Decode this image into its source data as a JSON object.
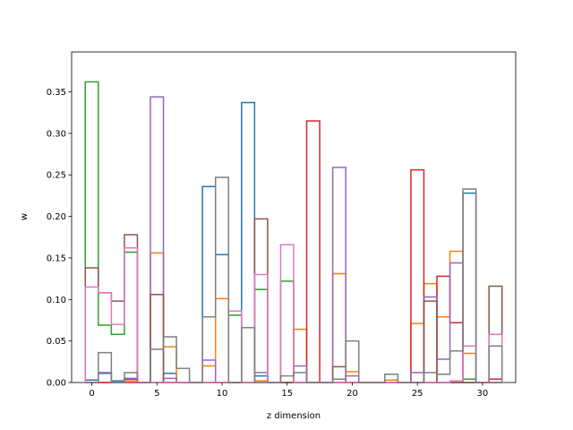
{
  "chart_data": {
    "type": "step",
    "xlabel": "z dimension",
    "ylabel": "w",
    "xlim": [
      -1.55,
      32.55
    ],
    "ylim": [
      0,
      0.398
    ],
    "xticks": [
      0,
      5,
      10,
      15,
      20,
      25,
      30
    ],
    "yticks": [
      0.0,
      0.05,
      0.1,
      0.15,
      0.2,
      0.25,
      0.3,
      0.35
    ],
    "ytick_labels": [
      "0.00",
      "0.05",
      "0.10",
      "0.15",
      "0.20",
      "0.25",
      "0.30",
      "0.35"
    ],
    "x": [
      0,
      1,
      2,
      3,
      4,
      5,
      6,
      7,
      8,
      9,
      10,
      11,
      12,
      13,
      14,
      15,
      16,
      17,
      18,
      19,
      20,
      21,
      22,
      23,
      24,
      25,
      26,
      27,
      28,
      29,
      30,
      31
    ],
    "grid": false,
    "series": [
      {
        "color": "#1f77b4",
        "values": [
          0.003,
          0.011,
          0.002,
          0.004,
          0.0,
          0.0,
          0.011,
          0.0,
          0.0,
          0.236,
          0.154,
          0.0,
          0.337,
          0.008,
          0.0,
          0.0,
          0.0,
          0.0,
          0.0,
          0.0,
          0.0,
          0.0,
          0.0,
          0.0,
          0.0,
          0.0,
          0.0,
          0.0,
          0.0,
          0.228,
          0.0,
          0.0
        ]
      },
      {
        "color": "#ff7f0e",
        "values": [
          0.0,
          0.0,
          0.0,
          0.002,
          0.0,
          0.156,
          0.043,
          0.0,
          0.0,
          0.02,
          0.101,
          0.0,
          0.0,
          0.002,
          0.0,
          0.0,
          0.064,
          0.0,
          0.0,
          0.131,
          0.013,
          0.0,
          0.0,
          0.003,
          0.0,
          0.071,
          0.119,
          0.079,
          0.158,
          0.035,
          0.0,
          0.0
        ]
      },
      {
        "color": "#2ca02c",
        "values": [
          0.362,
          0.069,
          0.058,
          0.157,
          0.0,
          0.0,
          0.0,
          0.0,
          0.0,
          0.0,
          0.0,
          0.081,
          0.0,
          0.112,
          0.0,
          0.122,
          0.0,
          0.0,
          0.0,
          0.0,
          0.0,
          0.0,
          0.0,
          0.0,
          0.0,
          0.0,
          0.0,
          0.0,
          0.0,
          0.004,
          0.0,
          0.0
        ]
      },
      {
        "color": "#d62728",
        "values": [
          0.0,
          0.0,
          0.0,
          0.0,
          0.0,
          0.0,
          0.0,
          0.0,
          0.0,
          0.0,
          0.0,
          0.0,
          0.0,
          0.0,
          0.0,
          0.0,
          0.0,
          0.315,
          0.0,
          0.0,
          0.0,
          0.0,
          0.0,
          0.0,
          0.0,
          0.256,
          0.0,
          0.128,
          0.072,
          0.0,
          0.0,
          0.004
        ]
      },
      {
        "color": "#9467bd",
        "values": [
          0.0,
          0.012,
          0.0,
          0.005,
          0.0,
          0.344,
          0.005,
          0.0,
          0.0,
          0.027,
          0.0,
          0.0,
          0.0,
          0.012,
          0.0,
          0.0,
          0.02,
          0.0,
          0.0,
          0.259,
          0.008,
          0.0,
          0.0,
          0.0,
          0.0,
          0.012,
          0.103,
          0.028,
          0.144,
          0.0,
          0.0,
          0.0
        ]
      },
      {
        "color": "#8c564b",
        "values": [
          0.138,
          0.108,
          0.098,
          0.178,
          0.0,
          0.106,
          0.0,
          0.0,
          0.0,
          0.0,
          0.0,
          0.0,
          0.0,
          0.197,
          0.0,
          0.0,
          0.0,
          0.0,
          0.0,
          0.019,
          0.0,
          0.0,
          0.0,
          0.0,
          0.0,
          0.0,
          0.098,
          0.0,
          0.0,
          0.0,
          0.0,
          0.116
        ]
      },
      {
        "color": "#e377c2",
        "values": [
          0.115,
          0.108,
          0.07,
          0.162,
          0.0,
          0.0,
          0.0,
          0.0,
          0.0,
          0.0,
          0.0,
          0.086,
          0.0,
          0.13,
          0.0,
          0.166,
          0.0,
          0.0,
          0.0,
          0.0,
          0.0,
          0.0,
          0.0,
          0.0,
          0.0,
          0.0,
          0.0,
          0.0,
          0.002,
          0.044,
          0.0,
          0.058
        ]
      },
      {
        "color": "#7f7f7f",
        "values": [
          0.0,
          0.036,
          0.0,
          0.012,
          0.0,
          0.04,
          0.055,
          0.017,
          0.0,
          0.079,
          0.247,
          0.0,
          0.066,
          0.0,
          0.0,
          0.008,
          0.012,
          0.0,
          0.0,
          0.004,
          0.05,
          0.0,
          0.0,
          0.01,
          0.0,
          0.0,
          0.012,
          0.01,
          0.038,
          0.233,
          0.0,
          0.044
        ]
      }
    ]
  }
}
